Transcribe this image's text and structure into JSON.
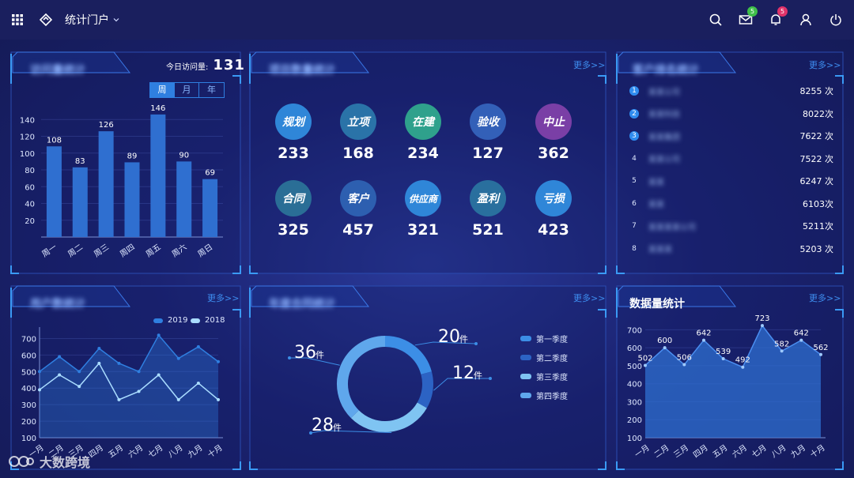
{
  "header": {
    "portal_label": "统计门户",
    "mail_badge": "5",
    "bell_badge": "5"
  },
  "panel_visits": {
    "title": "访问量统计",
    "today_label": "今日访问量:",
    "today_value": "131",
    "tabs": [
      "周",
      "月",
      "年"
    ],
    "active_tab": "周"
  },
  "panel_project": {
    "title": "项目数量统计",
    "more": "更多>>",
    "items": [
      {
        "label": "规划",
        "value": "233",
        "color": "#2f86d8"
      },
      {
        "label": "立项",
        "value": "168",
        "color": "#2a73a8"
      },
      {
        "label": "在建",
        "value": "234",
        "color": "#2fa18c"
      },
      {
        "label": "验收",
        "value": "127",
        "color": "#3360b8"
      },
      {
        "label": "中止",
        "value": "362",
        "color": "#7a3fa6"
      },
      {
        "label": "合同",
        "value": "325",
        "color": "#2a6e96"
      },
      {
        "label": "客户",
        "value": "457",
        "color": "#2d5fb0"
      },
      {
        "label": "供应商",
        "value": "321",
        "color": "#2f86d8"
      },
      {
        "label": "盈利",
        "value": "521",
        "color": "#296f9e"
      },
      {
        "label": "亏损",
        "value": "423",
        "color": "#2f86d8"
      }
    ]
  },
  "panel_rank": {
    "title": "客户排名统计",
    "more": "更多>>",
    "rows": [
      {
        "index": "1",
        "name": "某某公司",
        "count": "8255 次"
      },
      {
        "index": "2",
        "name": "某某科技",
        "count": "8022次"
      },
      {
        "index": "3",
        "name": "某某集团",
        "count": "7622 次"
      },
      {
        "index": "4",
        "name": "某某公司",
        "count": "7522 次"
      },
      {
        "index": "5",
        "name": "某某",
        "count": "6247 次"
      },
      {
        "index": "6",
        "name": "某某",
        "count": "6103次"
      },
      {
        "index": "7",
        "name": "某某某某公司",
        "count": "5211次"
      },
      {
        "index": "8",
        "name": "某某某",
        "count": "5203 次"
      }
    ]
  },
  "panel_users": {
    "title": "用户数统计",
    "more": "更多>>"
  },
  "panel_quarter": {
    "title": "年度合同统计",
    "more": "更多>>"
  },
  "panel_data": {
    "title": "数据量统计",
    "more": "更多>>"
  },
  "watermark": "大数跨境",
  "chart_data": [
    {
      "type": "bar",
      "categories": [
        "周一",
        "周二",
        "周三",
        "周四",
        "周五",
        "周六",
        "周日"
      ],
      "values": [
        108,
        83,
        126,
        89,
        146,
        90,
        69
      ],
      "yticks": [
        20,
        40,
        60,
        80,
        100,
        120,
        140
      ],
      "ylim": [
        0,
        160
      ],
      "grid": true,
      "color": "#2f6fd0"
    },
    {
      "type": "line",
      "categories": [
        "一月",
        "二月",
        "三月",
        "四月",
        "五月",
        "六月",
        "七月",
        "八月",
        "九月",
        "十月"
      ],
      "series": [
        {
          "name": "2019",
          "values": [
            500,
            590,
            500,
            640,
            550,
            500,
            720,
            580,
            650,
            560
          ],
          "color": "#2f7fe0"
        },
        {
          "name": "2018",
          "values": [
            390,
            480,
            410,
            550,
            330,
            380,
            480,
            330,
            430,
            330
          ],
          "color": "#a9dcff"
        }
      ],
      "yticks": [
        100,
        200,
        300,
        400,
        500,
        600,
        700
      ],
      "ylim": [
        100,
        750
      ],
      "legend": "top-right"
    },
    {
      "type": "pie",
      "donut": true,
      "slices": [
        {
          "name": "第一季度",
          "value": 20,
          "label": "20",
          "color": "#3c8ee6"
        },
        {
          "name": "第二季度",
          "value": 12,
          "label": "12",
          "color": "#2c63c4"
        },
        {
          "name": "第三季度",
          "value": 28,
          "label": "28",
          "color": "#7fc4f2"
        },
        {
          "name": "第四季度",
          "value": 36,
          "label": "36",
          "color": "#5fa7ec"
        }
      ],
      "unit": "件",
      "legend": "right"
    },
    {
      "type": "area",
      "categories": [
        "一月",
        "二月",
        "三月",
        "四月",
        "五月",
        "六月",
        "七月",
        "八月",
        "九月",
        "十月"
      ],
      "values": [
        502,
        600,
        506,
        642,
        539,
        492,
        723,
        582,
        642,
        562
      ],
      "yticks": [
        100,
        200,
        300,
        400,
        500,
        600,
        700
      ],
      "ylim": [
        100,
        750
      ],
      "color": "#2f6fd0"
    }
  ]
}
